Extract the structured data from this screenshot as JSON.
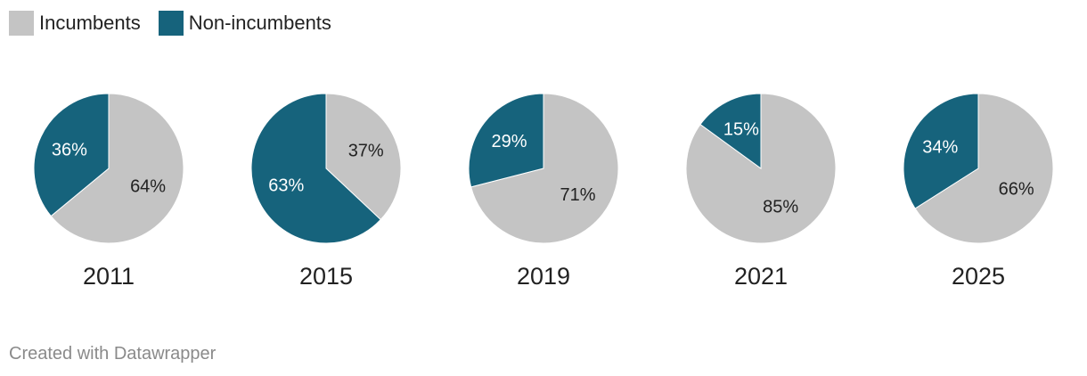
{
  "colors": {
    "incumbents": "#c4c4c4",
    "non_incumbents": "#16637c"
  },
  "legend": [
    {
      "label": "Incumbents",
      "color": "#c4c4c4"
    },
    {
      "label": "Non-incumbents",
      "color": "#16637c"
    }
  ],
  "chart_data": {
    "type": "pie",
    "series_names": [
      "Incumbents",
      "Non-incumbents"
    ],
    "charts": [
      {
        "label": "2011",
        "values": [
          64,
          36
        ],
        "value_labels": [
          "64%",
          "36%"
        ]
      },
      {
        "label": "2015",
        "values": [
          37,
          63
        ],
        "value_labels": [
          "37%",
          "63%"
        ]
      },
      {
        "label": "2019",
        "values": [
          71,
          29
        ],
        "value_labels": [
          "71%",
          "29%"
        ]
      },
      {
        "label": "2021",
        "values": [
          85,
          15
        ],
        "value_labels": [
          "85%",
          "15%"
        ]
      },
      {
        "label": "2025",
        "values": [
          66,
          34
        ],
        "value_labels": [
          "66%",
          "34%"
        ]
      }
    ]
  },
  "footer": "Created with Datawrapper"
}
